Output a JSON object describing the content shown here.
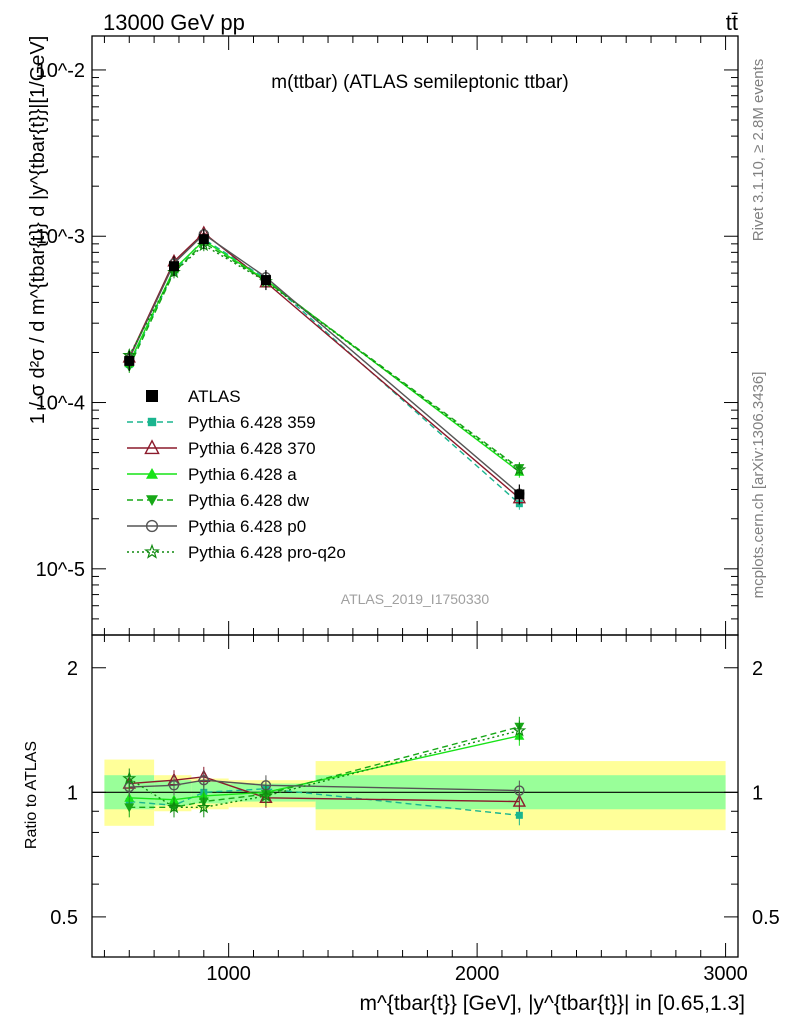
{
  "header": {
    "left": "13000 GeV pp",
    "right": "tt̄"
  },
  "side": {
    "rivet": "Rivet 3.1.10, ≥ 2.8M events",
    "mcplots": "mcplots.cern.ch [arXiv:1306.3436]"
  },
  "chart_data": {
    "type": "line",
    "title": "m(ttbar) (ATLAS semileptonic ttbar)",
    "watermark": "ATLAS_2019_I1750330",
    "ylabel": "1 / σ d²σ / d m^{tbar{t}} d |y^{tbar{t}}|[1/GeV]",
    "ratio_ylabel": "Ratio to ATLAS",
    "xlabel": "m^{tbar{t}} [GeV], |y^{tbar{t}}| in [0.65,1.3]",
    "xlim": [
      450,
      3050
    ],
    "ylim": [
      4e-06,
      0.016
    ],
    "yscale": "log",
    "ratio_ylim": [
      0.4,
      2.4
    ],
    "ratio_yscale": "log",
    "xticks": [
      1000,
      2000,
      3000
    ],
    "xtick_labels": [
      "1000",
      "2000",
      "3000"
    ],
    "main_ytick_labels": [
      "10^-5",
      "10^-4",
      "10^-3",
      "10^-2"
    ],
    "ratio_ytick_labels": [
      "0.5",
      "1",
      "2"
    ],
    "x": [
      600,
      780,
      900,
      1150,
      2170
    ],
    "reference": {
      "name": "ATLAS",
      "values": [
        0.000178,
        0.00066,
        0.00096,
        0.000545,
        2.8e-05
      ],
      "bins": [
        [
          500,
          700
        ],
        [
          700,
          850
        ],
        [
          850,
          1000
        ],
        [
          1000,
          1350
        ],
        [
          1350,
          3000
        ]
      ],
      "ratio_band_inner": [
        [
          0.91,
          1.1
        ],
        [
          0.93,
          1.07
        ],
        [
          0.94,
          1.06
        ],
        [
          0.95,
          1.05
        ],
        [
          0.91,
          1.1
        ]
      ],
      "ratio_band_outer": [
        [
          0.83,
          1.2
        ],
        [
          0.9,
          1.1
        ],
        [
          0.91,
          1.08
        ],
        [
          0.92,
          1.07
        ],
        [
          0.81,
          1.19
        ]
      ]
    },
    "series": [
      {
        "name": "Pythia 6.428 359",
        "color": "#1ab58f",
        "dash": "6,4",
        "marker": "square",
        "ratio": [
          0.95,
          0.93,
          1.0,
          1.02,
          0.88
        ]
      },
      {
        "name": "Pythia 6.428 370",
        "color": "#8b1a2b",
        "dash": "",
        "marker": "triangle-open",
        "ratio": [
          1.05,
          1.07,
          1.09,
          0.97,
          0.95
        ]
      },
      {
        "name": "Pythia 6.428 a",
        "color": "#17e317",
        "dash": "",
        "marker": "triangle",
        "ratio": [
          0.97,
          0.96,
          0.98,
          1.0,
          1.37
        ]
      },
      {
        "name": "Pythia 6.428 dw",
        "color": "#17a817",
        "dash": "6,4",
        "marker": "triangle-down",
        "ratio": [
          0.92,
          0.92,
          0.95,
          0.99,
          1.44
        ]
      },
      {
        "name": "Pythia 6.428 p0",
        "color": "#555555",
        "dash": "",
        "marker": "circle-open",
        "ratio": [
          1.03,
          1.04,
          1.07,
          1.04,
          1.01
        ]
      },
      {
        "name": "Pythia 6.428 pro-q2o",
        "color": "#0f8a0f",
        "dash": "2,3",
        "marker": "star-open",
        "ratio": [
          1.08,
          0.92,
          0.92,
          0.98,
          1.41
        ]
      }
    ]
  }
}
